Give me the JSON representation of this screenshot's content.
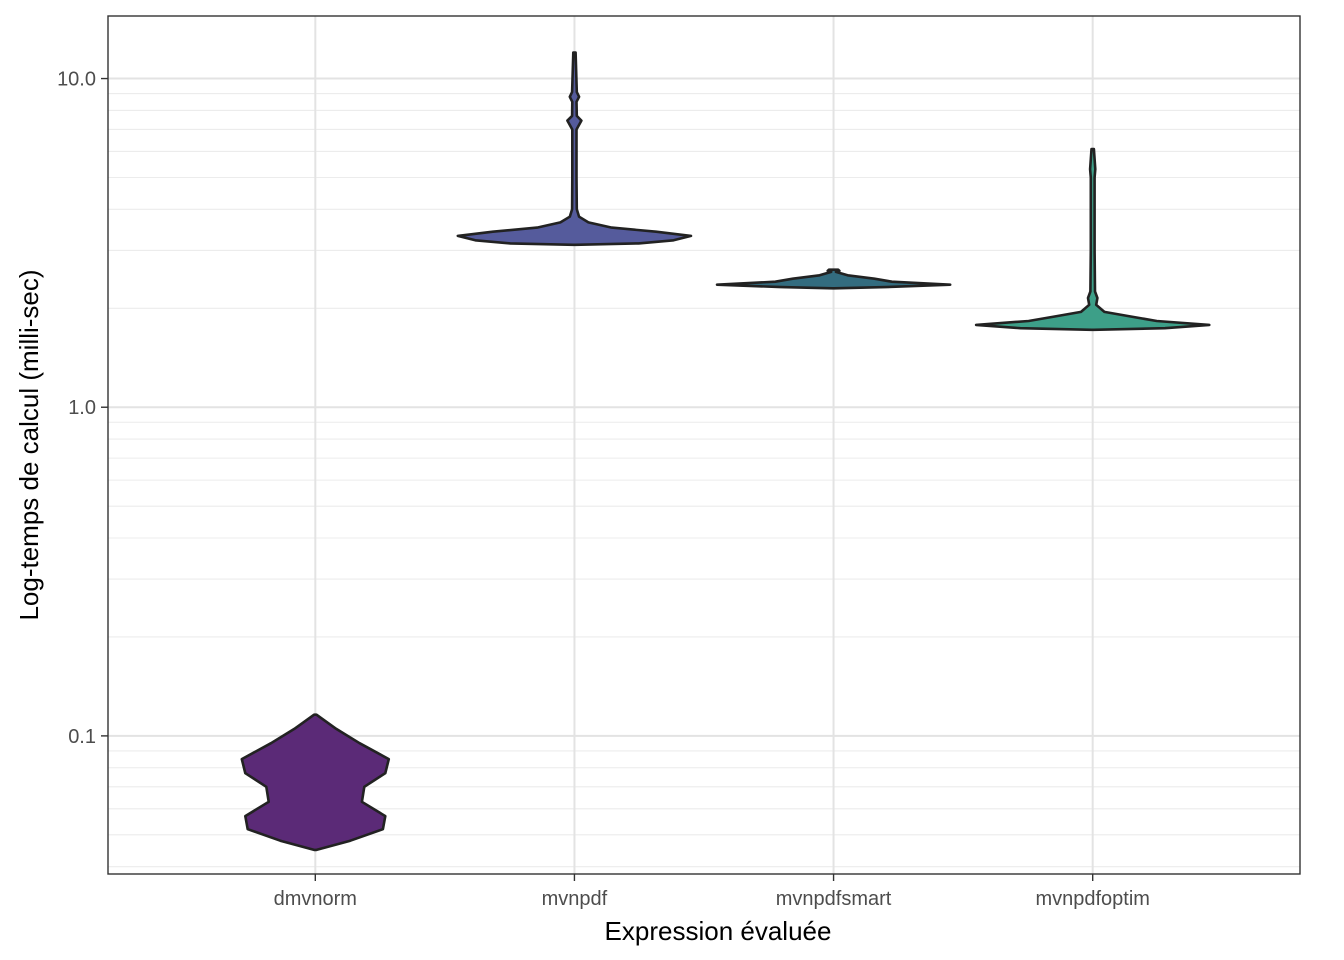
{
  "chart_data": {
    "type": "violin",
    "xlabel": "Expression évaluée",
    "ylabel": "Log-temps de calcul (milli-sec)",
    "y_scale": "log10",
    "ylim": [
      0.038,
      15.5
    ],
    "y_ticks": [
      {
        "value": 0.1,
        "label": "0.1"
      },
      {
        "value": 1.0,
        "label": "1.0"
      },
      {
        "value": 10.0,
        "label": "10.0"
      }
    ],
    "grid": true,
    "legend": "none",
    "categories": [
      "dmvnorm",
      "mvnpdf",
      "mvnpdfsmart",
      "mvnpdfoptim"
    ],
    "series": [
      {
        "category": "dmvnorm",
        "color": "#5b2a77",
        "profile": [
          [
            0.045,
            0.01
          ],
          [
            0.048,
            0.3
          ],
          [
            0.052,
            0.58
          ],
          [
            0.057,
            0.6
          ],
          [
            0.063,
            0.4
          ],
          [
            0.07,
            0.42
          ],
          [
            0.077,
            0.6
          ],
          [
            0.085,
            0.63
          ],
          [
            0.095,
            0.38
          ],
          [
            0.105,
            0.18
          ],
          [
            0.116,
            0.01
          ]
        ]
      },
      {
        "category": "mvnpdf",
        "color": "#555b9c",
        "profile": [
          [
            3.12,
            0.01
          ],
          [
            3.15,
            0.55
          ],
          [
            3.22,
            0.85
          ],
          [
            3.32,
            1.0
          ],
          [
            3.42,
            0.7
          ],
          [
            3.52,
            0.32
          ],
          [
            3.65,
            0.12
          ],
          [
            3.8,
            0.04
          ],
          [
            4.0,
            0.02
          ],
          [
            5.0,
            0.018
          ],
          [
            7.0,
            0.018
          ],
          [
            7.45,
            0.06
          ],
          [
            7.7,
            0.02
          ],
          [
            8.5,
            0.018
          ],
          [
            8.8,
            0.04
          ],
          [
            9.1,
            0.02
          ],
          [
            12.0,
            0.01
          ]
        ]
      },
      {
        "category": "mvnpdfsmart",
        "color": "#336c7f",
        "profile": [
          [
            2.3,
            0.01
          ],
          [
            2.32,
            0.45
          ],
          [
            2.36,
            1.0
          ],
          [
            2.41,
            0.5
          ],
          [
            2.46,
            0.35
          ],
          [
            2.52,
            0.12
          ],
          [
            2.58,
            0.02
          ],
          [
            2.6,
            0.05
          ],
          [
            2.62,
            0.04
          ]
        ]
      },
      {
        "category": "mvnpdfoptim",
        "color": "#3d9f88",
        "profile": [
          [
            1.72,
            0.01
          ],
          [
            1.74,
            0.62
          ],
          [
            1.78,
            1.0
          ],
          [
            1.83,
            0.55
          ],
          [
            1.89,
            0.32
          ],
          [
            1.95,
            0.1
          ],
          [
            2.05,
            0.03
          ],
          [
            2.15,
            0.04
          ],
          [
            2.25,
            0.02
          ],
          [
            3.0,
            0.016
          ],
          [
            5.0,
            0.016
          ],
          [
            5.3,
            0.022
          ],
          [
            6.1,
            0.01
          ]
        ]
      }
    ]
  }
}
